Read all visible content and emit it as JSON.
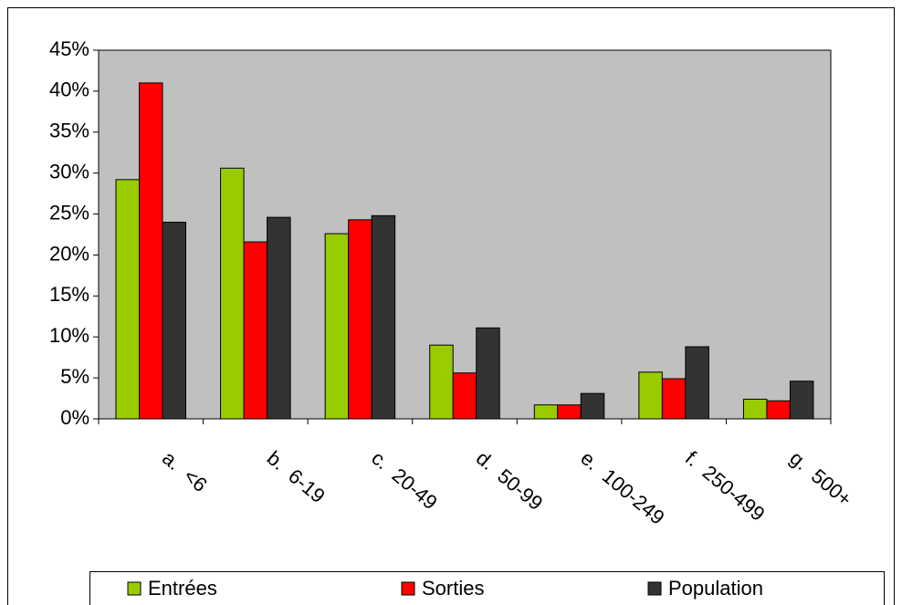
{
  "chart_data": {
    "type": "bar",
    "categories": [
      "a.  <6",
      "b.  6-19",
      "c.  20-49",
      "d.  50-99",
      "e.  100-249",
      "f.  250-499",
      "g.  500+"
    ],
    "series": [
      {
        "name": "Entrées",
        "color": "#99cc00",
        "values": [
          29.2,
          30.6,
          22.6,
          9.0,
          1.7,
          5.7,
          2.4
        ]
      },
      {
        "name": "Sorties",
        "color": "#ff0000",
        "values": [
          41,
          21.6,
          24.3,
          5.6,
          1.7,
          4.9,
          2.2
        ]
      },
      {
        "name": "Population",
        "color": "#333333",
        "values": [
          24,
          24.6,
          24.8,
          11.1,
          3.1,
          8.8,
          4.6
        ]
      }
    ],
    "ylim": [
      0,
      45
    ],
    "yticks": [
      {
        "value": 0,
        "label": "0%"
      },
      {
        "value": 5,
        "label": "5%"
      },
      {
        "value": 10,
        "label": "10%"
      },
      {
        "value": 15,
        "label": "15%"
      },
      {
        "value": 20,
        "label": "20%"
      },
      {
        "value": 25,
        "label": "25%"
      },
      {
        "value": 30,
        "label": "30%"
      },
      {
        "value": 35,
        "label": "35%"
      },
      {
        "value": 40,
        "label": "40%"
      },
      {
        "value": 45,
        "label": "45%"
      }
    ],
    "legend": "bottom"
  }
}
